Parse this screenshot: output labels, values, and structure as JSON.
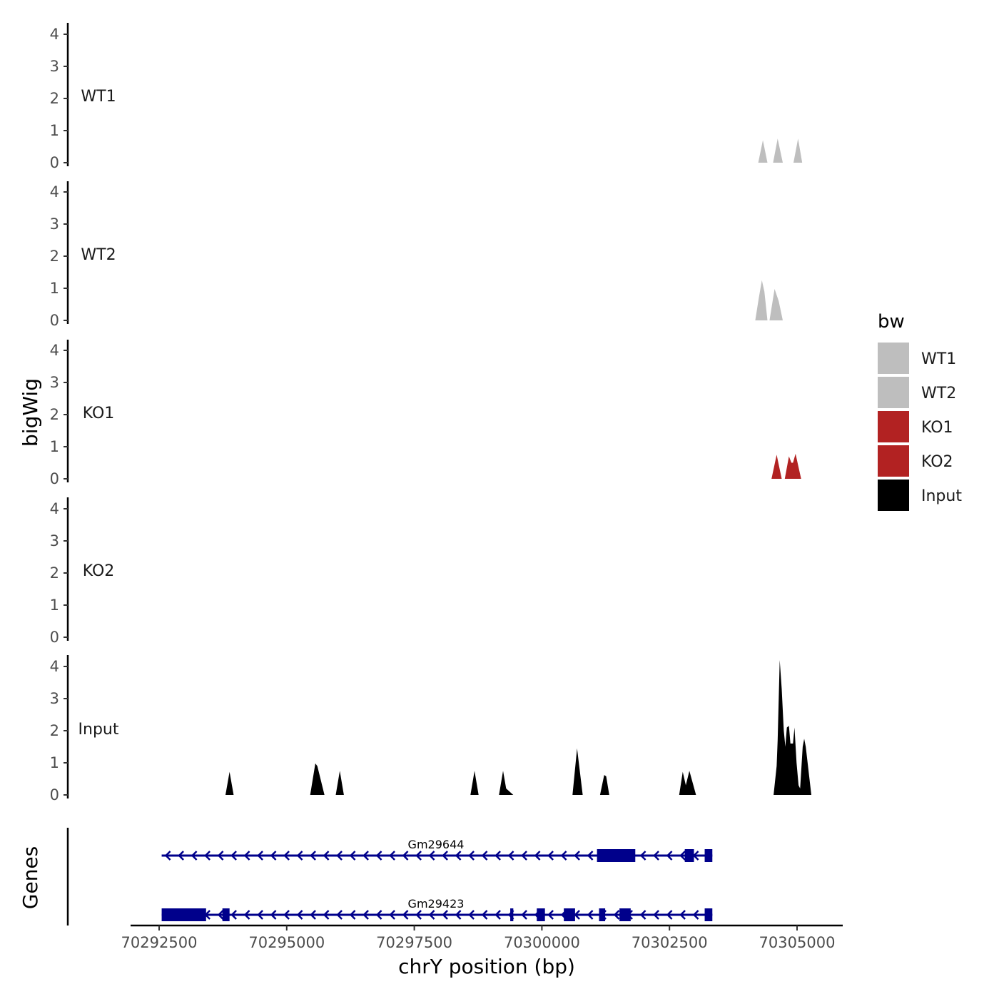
{
  "chart_data": {
    "type": "area",
    "ylabel": "bigWig",
    "xlabel": "chrY position (bp)",
    "x_range": [
      70291600,
      70306000
    ],
    "x_ticks": [
      70292500,
      70295000,
      70297500,
      70300000,
      70302500,
      70305000
    ],
    "x_tick_labels": [
      "70292500",
      "70295000",
      "70297500",
      "70300000",
      "70302500",
      "70305000"
    ],
    "y_range": [
      0,
      4.2
    ],
    "y_ticks": [
      0,
      1,
      2,
      3,
      4
    ],
    "y_tick_labels": [
      "0",
      "1",
      "2",
      "3",
      "4"
    ],
    "series": [
      {
        "name": "WT1",
        "color": "#bebebe",
        "points": [
          [
            70304240,
            0
          ],
          [
            70304330,
            0.7
          ],
          [
            70304420,
            0
          ],
          [
            70304530,
            0
          ],
          [
            70304620,
            0.75
          ],
          [
            70304720,
            0
          ],
          [
            70304930,
            0
          ],
          [
            70305020,
            0.75
          ],
          [
            70305100,
            0
          ]
        ]
      },
      {
        "name": "WT2",
        "color": "#bebebe",
        "points": [
          [
            70304180,
            0
          ],
          [
            70304250,
            0.7
          ],
          [
            70304310,
            1.25
          ],
          [
            70304360,
            0.9
          ],
          [
            70304420,
            0
          ],
          [
            70304460,
            0
          ],
          [
            70304560,
            0.98
          ],
          [
            70304640,
            0.6
          ],
          [
            70304720,
            0
          ]
        ]
      },
      {
        "name": "KO1",
        "color": "#b22222",
        "points": [
          [
            70304500,
            0
          ],
          [
            70304600,
            0.75
          ],
          [
            70304700,
            0
          ],
          [
            70304760,
            0
          ],
          [
            70304840,
            0.7
          ],
          [
            70304890,
            0.5
          ],
          [
            70304920,
            0.5
          ],
          [
            70304970,
            0.78
          ],
          [
            70305080,
            0
          ]
        ]
      },
      {
        "name": "KO2",
        "color": "#b22222",
        "points": []
      },
      {
        "name": "Input",
        "color": "#000000",
        "points": [
          [
            70293800,
            0
          ],
          [
            70293880,
            0.72
          ],
          [
            70293960,
            0
          ],
          [
            70295460,
            0
          ],
          [
            70295560,
            0.98
          ],
          [
            70295600,
            0.9
          ],
          [
            70295740,
            0
          ],
          [
            70295960,
            0
          ],
          [
            70296040,
            0.75
          ],
          [
            70296120,
            0
          ],
          [
            70298600,
            0
          ],
          [
            70298680,
            0.75
          ],
          [
            70298760,
            0
          ],
          [
            70299160,
            0
          ],
          [
            70299240,
            0.75
          ],
          [
            70299300,
            0.2
          ],
          [
            70299440,
            0
          ],
          [
            70300600,
            0
          ],
          [
            70300690,
            1.45
          ],
          [
            70300800,
            0
          ],
          [
            70301140,
            0
          ],
          [
            70301220,
            0.62
          ],
          [
            70301260,
            0.58
          ],
          [
            70301320,
            0
          ],
          [
            70302690,
            0
          ],
          [
            70302760,
            0.72
          ],
          [
            70302820,
            0.3
          ],
          [
            70302890,
            0.75
          ],
          [
            70303020,
            0
          ],
          [
            70304540,
            0
          ],
          [
            70304600,
            0.9
          ],
          [
            70304620,
            1.7
          ],
          [
            70304660,
            4.2
          ],
          [
            70304700,
            3.3
          ],
          [
            70304740,
            2.0
          ],
          [
            70304770,
            1.5
          ],
          [
            70304800,
            2.1
          ],
          [
            70304840,
            2.15
          ],
          [
            70304870,
            1.6
          ],
          [
            70304920,
            1.6
          ],
          [
            70304950,
            2.1
          ],
          [
            70304990,
            1.0
          ],
          [
            70305030,
            0.3
          ],
          [
            70305060,
            0.2
          ],
          [
            70305110,
            1.5
          ],
          [
            70305140,
            1.75
          ],
          [
            70305170,
            1.5
          ],
          [
            70305280,
            0
          ]
        ]
      }
    ],
    "genes": [
      {
        "name": "Gm29644",
        "strand": "-",
        "start": 70292550,
        "end": 70303340,
        "exons": [
          [
            70301080,
            70301830
          ],
          [
            70302800,
            70302980
          ],
          [
            70303190,
            70303340
          ]
        ]
      },
      {
        "name": "Gm29423",
        "strand": "-",
        "start": 70292550,
        "end": 70303340,
        "exons": [
          [
            70292550,
            70293420
          ],
          [
            70293740,
            70293880
          ],
          [
            70299380,
            70299440
          ],
          [
            70299900,
            70300060
          ],
          [
            70300430,
            70300650
          ],
          [
            70301120,
            70301240
          ],
          [
            70301520,
            70301740
          ],
          [
            70303190,
            70303340
          ]
        ]
      }
    ],
    "gene_track_label": "Genes",
    "gene_color": "#00008b",
    "legend": {
      "title": "bw",
      "position": "right",
      "items": [
        {
          "label": "WT1",
          "color": "#bebebe"
        },
        {
          "label": "WT2",
          "color": "#bebebe"
        },
        {
          "label": "KO1",
          "color": "#b22222"
        },
        {
          "label": "KO2",
          "color": "#b22222"
        },
        {
          "label": "Input",
          "color": "#000000"
        }
      ]
    },
    "grid": false
  }
}
